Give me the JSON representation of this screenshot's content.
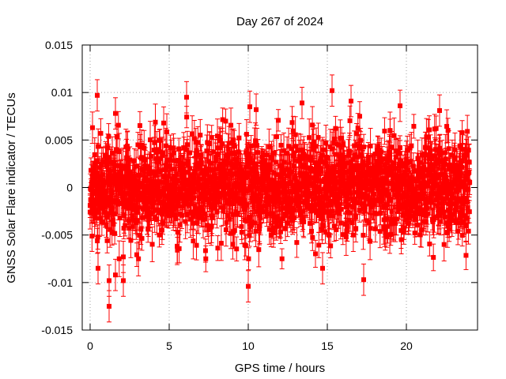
{
  "chart_data": {
    "type": "scatter",
    "title": "Day 267 of 2024",
    "xlabel": "GPS time / hours",
    "ylabel": "GNSS Solar Flare indicator / TECUs",
    "xlim": [
      -0.5,
      24.5
    ],
    "ylim": [
      -0.015,
      0.015
    ],
    "x_ticks": [
      0,
      5,
      10,
      15,
      20
    ],
    "x_tick_labels": [
      "0",
      "5",
      "10",
      "15",
      "20"
    ],
    "y_ticks": [
      -0.015,
      -0.01,
      -0.005,
      0,
      0.005,
      0.01,
      0.015
    ],
    "y_tick_labels": [
      "-0.015",
      "-0.01",
      "-0.005",
      "0",
      "0.005",
      "0.01",
      "0.015"
    ],
    "grid": true,
    "marker": "square",
    "error_bars": true,
    "series_color": "#ff0000",
    "series": [
      {
        "name": "solar flare indicator",
        "sampling_interval_hours": 0.025,
        "x_range": [
          0,
          24
        ],
        "typical_std_dev": 0.0025,
        "typical_error_bar": 0.0015,
        "notable_points": [
          {
            "x": 0.15,
            "y": 0.0063
          },
          {
            "x": 0.45,
            "y": 0.0097
          },
          {
            "x": 0.5,
            "y": -0.0085
          },
          {
            "x": 1.2,
            "y": -0.0125
          },
          {
            "x": 1.2,
            "y": -0.0098
          },
          {
            "x": 1.6,
            "y": 0.0078
          },
          {
            "x": 1.6,
            "y": -0.0092
          },
          {
            "x": 2.1,
            "y": -0.0098
          },
          {
            "x": 2.1,
            "y": -0.0073
          },
          {
            "x": 6.1,
            "y": 0.0095
          },
          {
            "x": 10.0,
            "y": -0.0104
          },
          {
            "x": 10.1,
            "y": 0.0085
          },
          {
            "x": 10.5,
            "y": 0.0082
          },
          {
            "x": 13.4,
            "y": 0.0089
          },
          {
            "x": 14.7,
            "y": -0.0085
          },
          {
            "x": 15.3,
            "y": 0.0102
          },
          {
            "x": 16.5,
            "y": 0.0091
          },
          {
            "x": 17.3,
            "y": -0.0097
          },
          {
            "x": 19.6,
            "y": 0.0086
          },
          {
            "x": 22.1,
            "y": 0.0081
          }
        ]
      }
    ]
  }
}
